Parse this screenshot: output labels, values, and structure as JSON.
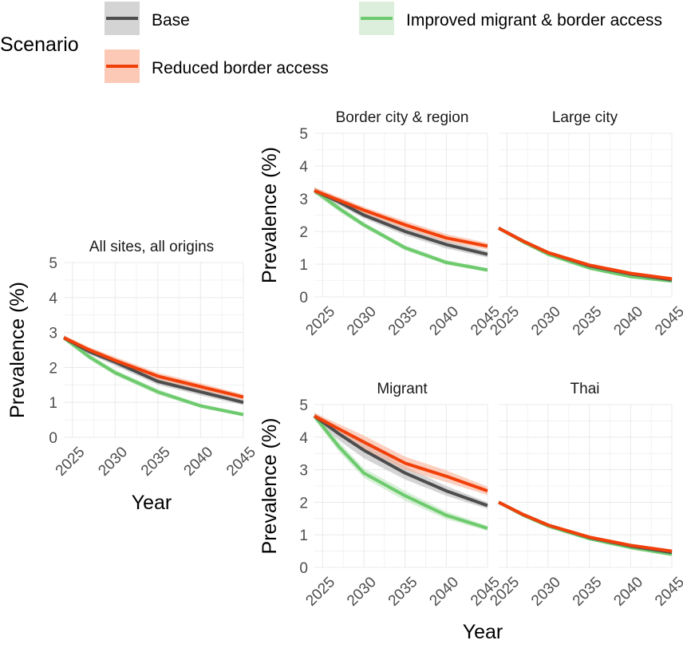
{
  "legend": {
    "title": "Scenario",
    "entries": [
      {
        "key": "base",
        "label": "Base"
      },
      {
        "key": "improved",
        "label": "Improved migrant & border access"
      },
      {
        "key": "reduced",
        "label": "Reduced border access"
      }
    ]
  },
  "colors": {
    "base": "#4d4d4d",
    "reduced": "#f2400a",
    "improved": "#6dca6d",
    "grid": "#ebebeb",
    "text": "#1a1a1a",
    "tick": "#4d4d4d"
  },
  "chart_data": [
    {
      "type": "line",
      "title": "All sites, all origins",
      "xlabel": "Year",
      "ylabel": "Prevalence (%)",
      "xlim": [
        2024,
        2045
      ],
      "ylim": [
        0,
        5
      ],
      "xticks": [
        2025,
        2030,
        2035,
        2040,
        2045
      ],
      "yticks": [
        0,
        1,
        2,
        3,
        4,
        5
      ],
      "x": [
        2024,
        2027,
        2030,
        2035,
        2040,
        2045
      ],
      "series": [
        {
          "name": "Base",
          "values": [
            2.85,
            2.45,
            2.15,
            1.6,
            1.3,
            1.0
          ],
          "lower": [
            2.78,
            2.37,
            2.05,
            1.5,
            1.2,
            0.92
          ],
          "upper": [
            2.92,
            2.53,
            2.25,
            1.7,
            1.4,
            1.08
          ]
        },
        {
          "name": "Reduced border access",
          "values": [
            2.85,
            2.5,
            2.2,
            1.75,
            1.45,
            1.15
          ],
          "lower": [
            2.78,
            2.42,
            2.1,
            1.65,
            1.35,
            1.07
          ],
          "upper": [
            2.92,
            2.58,
            2.3,
            1.85,
            1.55,
            1.23
          ]
        },
        {
          "name": "Improved migrant & border access",
          "values": [
            2.85,
            2.3,
            1.85,
            1.3,
            0.9,
            0.65
          ],
          "lower": [
            2.78,
            2.22,
            1.77,
            1.22,
            0.84,
            0.6
          ],
          "upper": [
            2.92,
            2.38,
            1.93,
            1.38,
            0.96,
            0.7
          ]
        }
      ]
    },
    {
      "type": "line",
      "title": "Border city & region",
      "xlabel": "",
      "ylabel": "Prevalence (%)",
      "xlim": [
        2024,
        2045
      ],
      "ylim": [
        0,
        5
      ],
      "xticks": [
        2025,
        2030,
        2035,
        2040,
        2045
      ],
      "yticks": [
        0,
        1,
        2,
        3,
        4,
        5
      ],
      "x": [
        2024,
        2027,
        2030,
        2035,
        2040,
        2045
      ],
      "series": [
        {
          "name": "Base",
          "values": [
            3.25,
            2.9,
            2.5,
            2.0,
            1.6,
            1.3
          ],
          "lower": [
            3.15,
            2.8,
            2.4,
            1.88,
            1.48,
            1.2
          ],
          "upper": [
            3.35,
            3.0,
            2.6,
            2.12,
            1.72,
            1.4
          ]
        },
        {
          "name": "Reduced border access",
          "values": [
            3.25,
            2.95,
            2.65,
            2.2,
            1.8,
            1.55
          ],
          "lower": [
            3.15,
            2.85,
            2.55,
            2.08,
            1.68,
            1.45
          ],
          "upper": [
            3.35,
            3.05,
            2.75,
            2.32,
            1.92,
            1.65
          ]
        },
        {
          "name": "Improved migrant & border access",
          "values": [
            3.25,
            2.7,
            2.2,
            1.5,
            1.05,
            0.82
          ],
          "lower": [
            3.15,
            2.6,
            2.12,
            1.42,
            0.98,
            0.76
          ],
          "upper": [
            3.35,
            2.8,
            2.28,
            1.58,
            1.12,
            0.88
          ]
        }
      ]
    },
    {
      "type": "line",
      "title": "Large city",
      "xlabel": "",
      "ylabel": "",
      "xlim": [
        2024,
        2045
      ],
      "ylim": [
        0,
        5
      ],
      "xticks": [
        2025,
        2030,
        2035,
        2040,
        2045
      ],
      "yticks": [
        0,
        1,
        2,
        3,
        4,
        5
      ],
      "x": [
        2024,
        2027,
        2030,
        2035,
        2040,
        2045
      ],
      "series": [
        {
          "name": "Base",
          "values": [
            2.1,
            1.7,
            1.35,
            0.95,
            0.7,
            0.52
          ],
          "lower": [
            2.05,
            1.64,
            1.3,
            0.9,
            0.66,
            0.49
          ],
          "upper": [
            2.15,
            1.76,
            1.4,
            1.0,
            0.74,
            0.55
          ]
        },
        {
          "name": "Reduced border access",
          "values": [
            2.1,
            1.7,
            1.35,
            0.97,
            0.72,
            0.55
          ],
          "lower": [
            2.05,
            1.64,
            1.3,
            0.92,
            0.68,
            0.52
          ],
          "upper": [
            2.15,
            1.76,
            1.4,
            1.02,
            0.76,
            0.58
          ]
        },
        {
          "name": "Improved migrant & border access",
          "values": [
            2.1,
            1.68,
            1.3,
            0.88,
            0.62,
            0.48
          ],
          "lower": [
            2.05,
            1.62,
            1.25,
            0.83,
            0.58,
            0.45
          ],
          "upper": [
            2.15,
            1.74,
            1.35,
            0.93,
            0.66,
            0.51
          ]
        }
      ]
    },
    {
      "type": "line",
      "title": "Migrant",
      "xlabel": "",
      "ylabel": "Prevalence (%)",
      "xlim": [
        2024,
        2045
      ],
      "ylim": [
        0,
        5
      ],
      "xticks": [
        2025,
        2030,
        2035,
        2040,
        2045
      ],
      "yticks": [
        0,
        1,
        2,
        3,
        4,
        5
      ],
      "x": [
        2024,
        2027,
        2030,
        2035,
        2040,
        2045
      ],
      "series": [
        {
          "name": "Base",
          "values": [
            4.65,
            4.1,
            3.6,
            2.9,
            2.35,
            1.9
          ],
          "lower": [
            4.55,
            3.9,
            3.35,
            2.7,
            2.2,
            1.8
          ],
          "upper": [
            4.75,
            4.3,
            3.85,
            3.1,
            2.5,
            2.0
          ]
        },
        {
          "name": "Reduced border access",
          "values": [
            4.65,
            4.25,
            3.85,
            3.2,
            2.8,
            2.35
          ],
          "lower": [
            4.55,
            4.1,
            3.65,
            3.0,
            2.62,
            2.22
          ],
          "upper": [
            4.75,
            4.4,
            4.05,
            3.4,
            2.98,
            2.48
          ]
        },
        {
          "name": "Improved migrant & border access",
          "values": [
            4.65,
            3.7,
            2.9,
            2.2,
            1.6,
            1.2
          ],
          "lower": [
            4.55,
            3.55,
            2.75,
            2.05,
            1.48,
            1.12
          ],
          "upper": [
            4.75,
            3.85,
            3.05,
            2.35,
            1.72,
            1.28
          ]
        }
      ]
    },
    {
      "type": "line",
      "title": "Thai",
      "xlabel": "Year",
      "ylabel": "",
      "xlim": [
        2024,
        2045
      ],
      "ylim": [
        0,
        5
      ],
      "xticks": [
        2025,
        2030,
        2035,
        2040,
        2045
      ],
      "yticks": [
        0,
        1,
        2,
        3,
        4,
        5
      ],
      "x": [
        2024,
        2027,
        2030,
        2035,
        2040,
        2045
      ],
      "series": [
        {
          "name": "Base",
          "values": [
            2.0,
            1.62,
            1.3,
            0.92,
            0.66,
            0.46
          ],
          "lower": [
            1.95,
            1.57,
            1.25,
            0.88,
            0.62,
            0.43
          ],
          "upper": [
            2.05,
            1.67,
            1.35,
            0.96,
            0.7,
            0.49
          ]
        },
        {
          "name": "Reduced border access",
          "values": [
            2.0,
            1.62,
            1.3,
            0.93,
            0.68,
            0.5
          ],
          "lower": [
            1.95,
            1.57,
            1.25,
            0.89,
            0.64,
            0.47
          ],
          "upper": [
            2.05,
            1.67,
            1.35,
            0.97,
            0.72,
            0.53
          ]
        },
        {
          "name": "Improved migrant & border access",
          "values": [
            2.0,
            1.6,
            1.27,
            0.88,
            0.61,
            0.4
          ],
          "lower": [
            1.95,
            1.55,
            1.22,
            0.84,
            0.57,
            0.37
          ],
          "upper": [
            2.05,
            1.65,
            1.32,
            0.92,
            0.65,
            0.43
          ]
        }
      ]
    }
  ]
}
